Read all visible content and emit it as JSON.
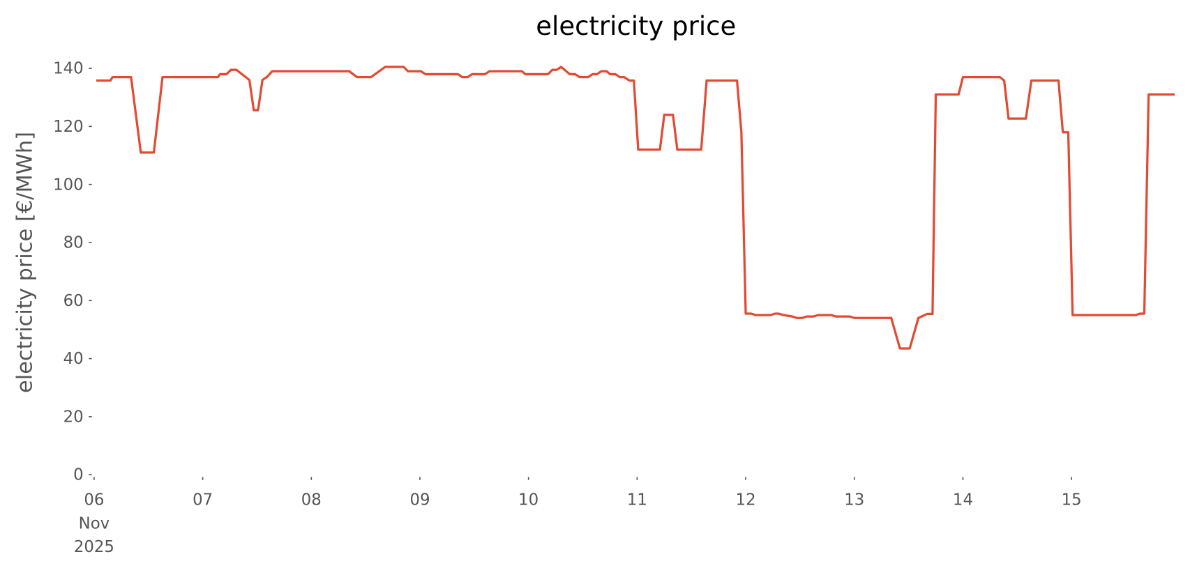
{
  "chart_data": {
    "type": "line",
    "title": "electricity price",
    "ylabel": "electricity price [€/MWh]",
    "x": [
      6.02,
      6.15,
      6.17,
      6.34,
      6.43,
      6.55,
      6.63,
      7.14,
      7.16,
      7.22,
      7.26,
      7.31,
      7.43,
      7.47,
      7.51,
      7.55,
      7.59,
      7.64,
      8.35,
      8.42,
      8.55,
      8.68,
      8.85,
      8.89,
      9.01,
      9.05,
      9.35,
      9.39,
      9.44,
      9.48,
      9.6,
      9.64,
      9.94,
      9.97,
      10.18,
      10.22,
      10.26,
      10.3,
      10.38,
      10.43,
      10.47,
      10.55,
      10.59,
      10.63,
      10.67,
      10.72,
      10.75,
      10.8,
      10.84,
      10.88,
      10.93,
      10.97,
      11.01,
      11.21,
      11.25,
      11.33,
      11.37,
      11.59,
      11.64,
      11.92,
      11.96,
      12.0,
      12.05,
      12.09,
      12.23,
      12.27,
      12.3,
      12.35,
      12.43,
      12.47,
      12.52,
      12.56,
      12.62,
      12.67,
      12.79,
      12.83,
      12.96,
      13.0,
      13.34,
      13.42,
      13.51,
      13.59,
      13.67,
      13.72,
      13.75,
      13.96,
      14.0,
      14.34,
      14.38,
      14.42,
      14.58,
      14.63,
      14.88,
      14.92,
      14.97,
      15.01,
      15.59,
      15.63,
      15.67,
      15.71,
      15.95
    ],
    "series": [
      {
        "name": "electricity price",
        "color": "#e24a33",
        "values": [
          135.8,
          135.8,
          137,
          137,
          111,
          111,
          137,
          137,
          138,
          138,
          139.5,
          139.5,
          136,
          125.6,
          125.6,
          136,
          137,
          139,
          139,
          137,
          137,
          140.5,
          140.5,
          139,
          139,
          138,
          138,
          137,
          137,
          138,
          138,
          139,
          139,
          138,
          138,
          139.5,
          139.5,
          140.5,
          138,
          138,
          137,
          137,
          138,
          138,
          139,
          139,
          138,
          138,
          137,
          137,
          135.8,
          135.8,
          112,
          112,
          124,
          124,
          112,
          112,
          135.8,
          135.8,
          118,
          55.5,
          55.5,
          55,
          55,
          55.5,
          55.5,
          55,
          54.5,
          54,
          54,
          54.5,
          54.5,
          55,
          55,
          54.5,
          54.5,
          54,
          54,
          43.5,
          43.5,
          54,
          55.4,
          55.4,
          131,
          131,
          137,
          137,
          135.8,
          122.7,
          122.7,
          135.8,
          135.8,
          118,
          118,
          55,
          55,
          55.5,
          55.5,
          131,
          131
        ]
      }
    ],
    "xlim": [
      6,
      16
    ],
    "xticks": [
      {
        "value": 6,
        "label": "06\nNov\n2025"
      },
      {
        "value": 7,
        "label": "07"
      },
      {
        "value": 8,
        "label": "08"
      },
      {
        "value": 9,
        "label": "09"
      },
      {
        "value": 10,
        "label": "10"
      },
      {
        "value": 11,
        "label": "11"
      },
      {
        "value": 12,
        "label": "12"
      },
      {
        "value": 13,
        "label": "13"
      },
      {
        "value": 14,
        "label": "14"
      },
      {
        "value": 15,
        "label": "15"
      }
    ],
    "ylim": [
      0,
      145
    ],
    "yticks": [
      0,
      20,
      40,
      60,
      80,
      100,
      120,
      140
    ],
    "grid": false
  }
}
